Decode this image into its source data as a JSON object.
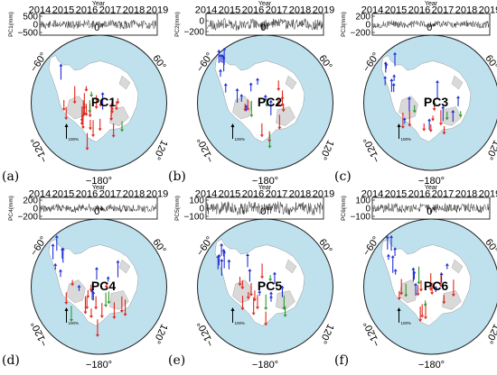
{
  "panels": [
    {
      "id": "a",
      "letter": "(a)",
      "pc_label": "PC1",
      "ylabel": "PC1(mm)",
      "yticks": [
        "500",
        "0",
        "−500"
      ],
      "amp": 0.42,
      "seed": 11,
      "stations": {
        "red": 24,
        "blue": 2,
        "green": 3
      }
    },
    {
      "id": "b",
      "letter": "(b)",
      "pc_label": "PC2",
      "ylabel": "PC2(mm)",
      "yticks": [
        "0",
        "−200"
      ],
      "amp": 0.55,
      "seed": 23,
      "stations": {
        "red": 10,
        "blue": 14,
        "green": 3
      }
    },
    {
      "id": "c",
      "letter": "(c)",
      "pc_label": "PC3",
      "ylabel": "PC3(mm)",
      "yticks": [
        "200",
        "0",
        "−200"
      ],
      "amp": 0.35,
      "seed": 37,
      "stations": {
        "red": 8,
        "blue": 14,
        "green": 4
      }
    },
    {
      "id": "d",
      "letter": "(d)",
      "pc_label": "PC4",
      "ylabel": "PC4(mm)",
      "yticks": [
        "200",
        "0",
        "−200"
      ],
      "amp": 0.4,
      "seed": 41,
      "stations": {
        "red": 14,
        "blue": 12,
        "green": 3
      }
    },
    {
      "id": "e",
      "letter": "(e)",
      "pc_label": "PC5",
      "ylabel": "PC5(mm)",
      "yticks": [
        "100",
        "0",
        "−100"
      ],
      "amp": 0.6,
      "seed": 53,
      "stations": {
        "red": 10,
        "blue": 14,
        "green": 4
      }
    },
    {
      "id": "f",
      "letter": "(f)",
      "pc_label": "PC6",
      "ylabel": "PC6(mm)",
      "yticks": [
        "100",
        "0",
        "−100"
      ],
      "amp": 0.45,
      "seed": 67,
      "stations": {
        "red": 12,
        "blue": 12,
        "green": 3
      }
    }
  ],
  "timeseries": {
    "xlabel": "Year",
    "years": [
      "2014",
      "2015",
      "2016",
      "2017",
      "2018",
      "2019"
    ]
  },
  "map_labels": {
    "top": "0°",
    "bottom": "−180°",
    "left_upper": "−60°",
    "right_upper": "60°",
    "left_lower": "−120°",
    "right_lower": "120°",
    "scale": "100%"
  },
  "colors": {
    "ocean": "#bfe1ee",
    "land": "#ffffff",
    "shelf": "#d9d9d9",
    "red_station": "#e0261c",
    "blue_station": "#1f2fd6",
    "green_station": "#2a9a2a",
    "series_line": "#333333"
  }
}
